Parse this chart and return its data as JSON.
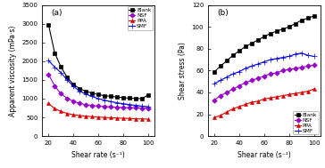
{
  "shear_rates": [
    20,
    25,
    30,
    35,
    40,
    45,
    50,
    55,
    60,
    65,
    70,
    75,
    80,
    85,
    90,
    95,
    100
  ],
  "viscosity_blank": [
    2980,
    2220,
    1850,
    1570,
    1380,
    1270,
    1195,
    1150,
    1110,
    1080,
    1060,
    1040,
    1025,
    1012,
    1005,
    1000,
    1095
  ],
  "viscosity_nsf": [
    1650,
    1340,
    1130,
    1010,
    930,
    870,
    840,
    820,
    800,
    788,
    778,
    770,
    764,
    758,
    754,
    750,
    746
  ],
  "viscosity_ppa": [
    870,
    735,
    660,
    605,
    570,
    548,
    532,
    518,
    507,
    498,
    490,
    483,
    476,
    470,
    464,
    458,
    452
  ],
  "viscosity_smf": [
    2020,
    1840,
    1695,
    1500,
    1330,
    1200,
    1120,
    1060,
    1000,
    960,
    920,
    890,
    865,
    842,
    820,
    800,
    785
  ],
  "stress_blank": [
    59,
    64,
    69,
    74,
    78,
    82,
    85,
    88,
    91,
    94,
    96,
    98,
    100,
    103,
    106,
    108,
    110
  ],
  "stress_nsf": [
    33,
    37,
    40,
    43,
    46,
    49,
    51,
    53,
    55,
    57,
    58,
    60,
    61,
    62,
    63,
    64,
    65
  ],
  "stress_ppa": [
    17,
    19,
    22,
    25,
    27,
    29,
    31,
    32,
    34,
    35,
    36,
    37,
    38,
    39,
    40,
    41,
    43
  ],
  "stress_smf": [
    48,
    51,
    54,
    57,
    59,
    62,
    64,
    66,
    68,
    70,
    71,
    72,
    73,
    75,
    76,
    74,
    73
  ],
  "colors": {
    "blank": "#000000",
    "nsf": "#9900cc",
    "ppa": "#dd0000",
    "smf": "#0000dd"
  },
  "ylabel_a": "Apparent viscosity (mPa·s)",
  "ylabel_b": "Shear stress (Pa)",
  "xlabel_a": "Shear rate (s⁻¹)",
  "xlabel_b": "Shear rate (s⁻¹)",
  "title_a": "(a)",
  "title_b": "(b)",
  "ylim_a": [
    0,
    3500
  ],
  "ylim_b": [
    0,
    120
  ],
  "xlim": [
    15,
    105
  ],
  "yticks_a": [
    0,
    500,
    1000,
    1500,
    2000,
    2500,
    3000,
    3500
  ],
  "yticks_b": [
    0,
    20,
    40,
    60,
    80,
    100,
    120
  ],
  "xticks": [
    20,
    40,
    60,
    80,
    100
  ],
  "legend_labels": [
    "Blank",
    "NSF",
    "PPA",
    "SMF"
  ],
  "marker_blank": "s",
  "marker_nsf": "D",
  "marker_ppa": "^",
  "marker_smf": "+"
}
